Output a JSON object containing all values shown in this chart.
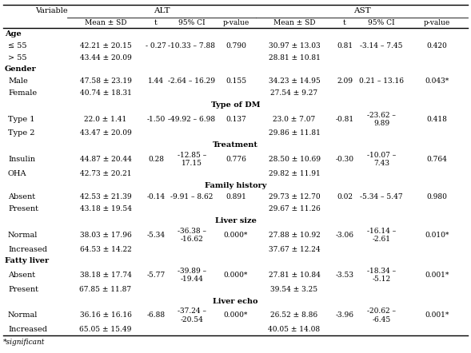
{
  "footnote": "*significant",
  "header_row1_labels": [
    "Variable",
    "ALT",
    "AST"
  ],
  "header_row2": [
    "Mean ± SD",
    "t",
    "95% CI",
    "p-value",
    "Mean ± SD",
    "t",
    "95% CI",
    "p-value"
  ],
  "rows": [
    {
      "type": "category",
      "label": "Age",
      "center": false
    },
    {
      "type": "data",
      "label": "≤ 55",
      "alt_mean": "42.21 ± 20.15",
      "alt_t": "- 0.27",
      "alt_ci": "-10.33 – 7.88",
      "alt_p": "0.790",
      "ast_mean": "30.97 ± 13.03",
      "ast_t": "0.81",
      "ast_ci": "-3.14 – 7.45",
      "ast_p": "0.420"
    },
    {
      "type": "data",
      "label": "> 55",
      "alt_mean": "43.44 ± 20.09",
      "alt_t": "",
      "alt_ci": "",
      "alt_p": "",
      "ast_mean": "28.81 ± 10.81",
      "ast_t": "",
      "ast_ci": "",
      "ast_p": ""
    },
    {
      "type": "category",
      "label": "Gender",
      "center": false
    },
    {
      "type": "data",
      "label": "Male",
      "alt_mean": "47.58 ± 23.19",
      "alt_t": "1.44",
      "alt_ci": "-2.64 – 16.29",
      "alt_p": "0.155",
      "ast_mean": "34.23 ± 14.95",
      "ast_t": "2.09",
      "ast_ci": "0.21 – 13.16",
      "ast_p": "0.043*"
    },
    {
      "type": "data",
      "label": "Female",
      "alt_mean": "40.74 ± 18.31",
      "alt_t": "",
      "alt_ci": "",
      "alt_p": "",
      "ast_mean": "27.54 ± 9.27",
      "ast_t": "",
      "ast_ci": "",
      "ast_p": ""
    },
    {
      "type": "category",
      "label": "Type of DM",
      "center": true
    },
    {
      "type": "data",
      "label": "Type 1",
      "alt_mean": "22.0 ± 1.41",
      "alt_t": "-1.50",
      "alt_ci": "-49.92 – 6.98",
      "alt_p": "0.137",
      "ast_mean": "23.0 ± 7.07",
      "ast_t": "-0.81",
      "ast_ci": "-23.62 –\n9.89",
      "ast_p": "0.418"
    },
    {
      "type": "data",
      "label": "Type 2",
      "alt_mean": "43.47 ± 20.09",
      "alt_t": "",
      "alt_ci": "",
      "alt_p": "",
      "ast_mean": "29.86 ± 11.81",
      "ast_t": "",
      "ast_ci": "",
      "ast_p": ""
    },
    {
      "type": "category",
      "label": "Treatment",
      "center": true
    },
    {
      "type": "data",
      "label": "Insulin",
      "alt_mean": "44.87 ± 20.44",
      "alt_t": "0.28",
      "alt_ci": "-12.85 –\n17.15",
      "alt_p": "0.776",
      "ast_mean": "28.50 ± 10.69",
      "ast_t": "-0.30",
      "ast_ci": "-10.07 –\n7.43",
      "ast_p": "0.764"
    },
    {
      "type": "data",
      "label": "OHA",
      "alt_mean": "42.73 ± 20.21",
      "alt_t": "",
      "alt_ci": "",
      "alt_p": "",
      "ast_mean": "29.82 ± 11.91",
      "ast_t": "",
      "ast_ci": "",
      "ast_p": ""
    },
    {
      "type": "category",
      "label": "Family history",
      "center": true
    },
    {
      "type": "data",
      "label": "Absent",
      "alt_mean": "42.53 ± 21.39",
      "alt_t": "-0.14",
      "alt_ci": "-9.91 – 8.62",
      "alt_p": "0.891",
      "ast_mean": "29.73 ± 12.70",
      "ast_t": "0.02",
      "ast_ci": "-5.34 – 5.47",
      "ast_p": "0.980"
    },
    {
      "type": "data",
      "label": "Present",
      "alt_mean": "43.18 ± 19.54",
      "alt_t": "",
      "alt_ci": "",
      "alt_p": "",
      "ast_mean": "29.67 ± 11.26",
      "ast_t": "",
      "ast_ci": "",
      "ast_p": ""
    },
    {
      "type": "category",
      "label": "Liver size",
      "center": true
    },
    {
      "type": "data",
      "label": "Normal",
      "alt_mean": "38.03 ± 17.96",
      "alt_t": "-5.34",
      "alt_ci": "-36.38 –\n-16.62",
      "alt_p": "0.000*",
      "ast_mean": "27.88 ± 10.92",
      "ast_t": "-3.06",
      "ast_ci": "-16.14 –\n-2.61",
      "ast_p": "0.010*"
    },
    {
      "type": "data",
      "label": "Increased",
      "alt_mean": "64.53 ± 14.22",
      "alt_t": "",
      "alt_ci": "",
      "alt_p": "",
      "ast_mean": "37.67 ± 12.24",
      "ast_t": "",
      "ast_ci": "",
      "ast_p": ""
    },
    {
      "type": "category",
      "label": "Fatty liver",
      "center": false
    },
    {
      "type": "data",
      "label": "Absent",
      "alt_mean": "38.18 ± 17.74",
      "alt_t": "-5.77",
      "alt_ci": "-39.89 –\n-19.44",
      "alt_p": "0.000*",
      "ast_mean": "27.81 ± 10.84",
      "ast_t": "-3.53",
      "ast_ci": "-18.34 –\n-5.12",
      "ast_p": "0.001*"
    },
    {
      "type": "data",
      "label": "Present",
      "alt_mean": "67.85 ± 11.87",
      "alt_t": "",
      "alt_ci": "",
      "alt_p": "",
      "ast_mean": "39.54 ± 3.25",
      "ast_t": "",
      "ast_ci": "",
      "ast_p": ""
    },
    {
      "type": "category",
      "label": "Liver echo",
      "center": true
    },
    {
      "type": "data",
      "label": "Normal",
      "alt_mean": "36.16 ± 16.16",
      "alt_t": "-6.88",
      "alt_ci": "-37.24 –\n-20.54",
      "alt_p": "0.000*",
      "ast_mean": "26.52 ± 8.86",
      "ast_t": "-3.96",
      "ast_ci": "-20.62 –\n-6.45",
      "ast_p": "0.001*"
    },
    {
      "type": "data",
      "label": "Increased",
      "alt_mean": "65.05 ± 15.49",
      "alt_t": "",
      "alt_ci": "",
      "alt_p": "",
      "ast_mean": "40.05 ± 14.08",
      "ast_t": "",
      "ast_ci": "",
      "ast_p": ""
    }
  ],
  "bg_color": "#ffffff",
  "text_color": "#000000",
  "line_color": "#000000"
}
